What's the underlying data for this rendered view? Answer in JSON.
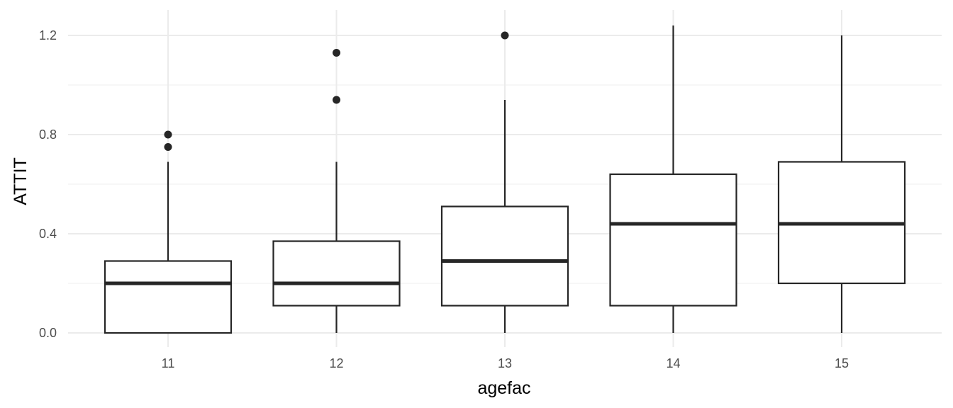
{
  "chart_data": {
    "type": "boxplot",
    "xlabel": "agefac",
    "ylabel": "ATTIT",
    "ylim": [
      -0.06,
      1.26
    ],
    "yticks": [
      0.0,
      0.4,
      0.8,
      1.2
    ],
    "ytick_labels": [
      "0.0",
      "0.4",
      "0.8",
      "1.2"
    ],
    "y_minor_ticks": [
      0.2,
      0.6,
      1.0
    ],
    "grid": true,
    "categories": [
      "11",
      "12",
      "13",
      "14",
      "15"
    ],
    "boxes": [
      {
        "category": "11",
        "whisker_low": 0.0,
        "q1": 0.0,
        "median": 0.2,
        "q3": 0.29,
        "whisker_high": 0.69,
        "outliers": [
          0.75,
          0.8
        ]
      },
      {
        "category": "12",
        "whisker_low": 0.0,
        "q1": 0.11,
        "median": 0.2,
        "q3": 0.37,
        "whisker_high": 0.69,
        "outliers": [
          0.94,
          1.13
        ]
      },
      {
        "category": "13",
        "whisker_low": 0.0,
        "q1": 0.11,
        "median": 0.29,
        "q3": 0.51,
        "whisker_high": 0.94,
        "outliers": [
          1.2
        ]
      },
      {
        "category": "14",
        "whisker_low": 0.0,
        "q1": 0.11,
        "median": 0.44,
        "q3": 0.64,
        "whisker_high": 1.24,
        "outliers": []
      },
      {
        "category": "15",
        "whisker_low": 0.0,
        "q1": 0.2,
        "median": 0.44,
        "q3": 0.69,
        "whisker_high": 1.2,
        "outliers": []
      }
    ],
    "colors": {
      "box_line": "#262626",
      "grid_major": "#ebebeb",
      "grid_minor": "#f2f2f2"
    }
  }
}
